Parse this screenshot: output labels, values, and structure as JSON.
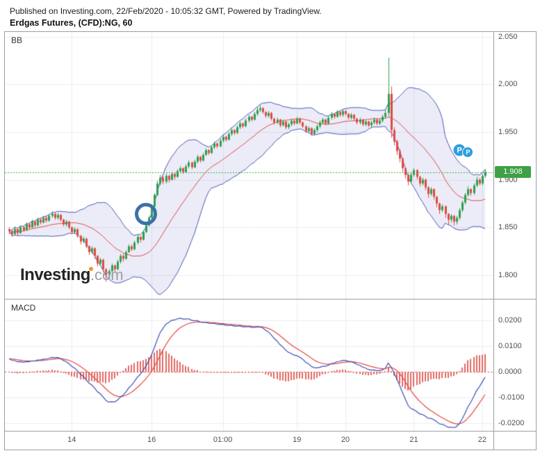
{
  "header": {
    "published_line": "Published on Investing.com, 22/Feb/2020 - 10:05:32 GMT, Powered by TradingView.",
    "instrument_line": "Erdgas Futures, (CFD):NG, 60"
  },
  "watermark": {
    "main": "Investing",
    "suffix": ".com"
  },
  "chart_data": {
    "type": "candlestick",
    "title": "Erdgas Futures (CFD):NG, 60 minute chart with Bollinger Bands and MACD",
    "interval_minutes": 60,
    "last_price": 1.908,
    "last_price_label": "1.908",
    "time_ticks": [
      {
        "index": 22,
        "label": "14"
      },
      {
        "index": 50,
        "label": "16"
      },
      {
        "index": 75,
        "label": "01:00"
      },
      {
        "index": 101,
        "label": "19"
      },
      {
        "index": 118,
        "label": "20"
      },
      {
        "index": 142,
        "label": "21"
      },
      {
        "index": 166,
        "label": "22"
      }
    ],
    "main_pane": {
      "indicator": "BB",
      "bb": {
        "period": 20,
        "stddev": 2
      },
      "ylim": [
        1.775,
        2.055
      ],
      "price_ticks": [
        {
          "value": 2.05,
          "label": "2.050"
        },
        {
          "value": 2.0,
          "label": "2.000"
        },
        {
          "value": 1.95,
          "label": "1.950"
        },
        {
          "value": 1.9,
          "label": "1.900"
        },
        {
          "value": 1.85,
          "label": "1.850"
        },
        {
          "value": 1.8,
          "label": "1.800"
        }
      ]
    },
    "macd_pane": {
      "indicator": "MACD",
      "params": {
        "fast": 12,
        "slow": 26,
        "signal": 9
      },
      "start_value": 0.005,
      "ylim": [
        -0.023,
        0.028
      ],
      "ticks": [
        {
          "value": 0.02,
          "label": "0.0200"
        },
        {
          "value": 0.01,
          "label": "0.0100"
        },
        {
          "value": 0.0,
          "label": "0.0000"
        },
        {
          "value": -0.01,
          "label": "-0.0100"
        },
        {
          "value": -0.02,
          "label": "-0.0200"
        }
      ]
    },
    "annotations": {
      "circle": {
        "index": 48,
        "price": 1.864
      },
      "p_markers": [
        {
          "index": 158,
          "price": 1.931,
          "label": "P"
        },
        {
          "index": 161,
          "price": 1.929,
          "label": "P"
        }
      ]
    },
    "colors": {
      "up": "#2f9e4f",
      "down": "#e04a41",
      "bb_line": "#4a55b5",
      "bb_mid": "#e04848",
      "bb_fill": "rgba(100,110,190,0.13)",
      "grid": "#ebedf0",
      "last_line": "#3da63d",
      "badge_bg": "#3fa045",
      "macd_line": "#3a4db5",
      "signal_line": "#e8433f",
      "hist": "#e06a63",
      "marker_bg": "#2f9fe0",
      "annotation": "#3a72a8"
    },
    "candles": [
      [
        1.848,
        1.85,
        1.843,
        1.846
      ],
      [
        1.846,
        1.847,
        1.84,
        1.843
      ],
      [
        1.843,
        1.851,
        1.842,
        1.848
      ],
      [
        1.848,
        1.849,
        1.841,
        1.844
      ],
      [
        1.844,
        1.852,
        1.843,
        1.85
      ],
      [
        1.85,
        1.852,
        1.845,
        1.847
      ],
      [
        1.847,
        1.855,
        1.846,
        1.853
      ],
      [
        1.853,
        1.855,
        1.848,
        1.85
      ],
      [
        1.85,
        1.858,
        1.849,
        1.856
      ],
      [
        1.856,
        1.857,
        1.85,
        1.852
      ],
      [
        1.852,
        1.86,
        1.851,
        1.858
      ],
      [
        1.858,
        1.86,
        1.853,
        1.855
      ],
      [
        1.855,
        1.862,
        1.854,
        1.86
      ],
      [
        1.86,
        1.862,
        1.855,
        1.857
      ],
      [
        1.857,
        1.864,
        1.856,
        1.862
      ],
      [
        1.862,
        1.867,
        1.86,
        1.864
      ],
      [
        1.864,
        1.866,
        1.858,
        1.86
      ],
      [
        1.86,
        1.865,
        1.858,
        1.863
      ],
      [
        1.863,
        1.864,
        1.856,
        1.858
      ],
      [
        1.858,
        1.859,
        1.851,
        1.853
      ],
      [
        1.853,
        1.858,
        1.851,
        1.856
      ],
      [
        1.856,
        1.857,
        1.848,
        1.85
      ],
      [
        1.85,
        1.851,
        1.843,
        1.845
      ],
      [
        1.845,
        1.85,
        1.843,
        1.848
      ],
      [
        1.848,
        1.849,
        1.839,
        1.841
      ],
      [
        1.841,
        1.842,
        1.832,
        1.835
      ],
      [
        1.835,
        1.84,
        1.833,
        1.838
      ],
      [
        1.838,
        1.839,
        1.828,
        1.83
      ],
      [
        1.83,
        1.831,
        1.821,
        1.824
      ],
      [
        1.824,
        1.83,
        1.822,
        1.828
      ],
      [
        1.828,
        1.829,
        1.817,
        1.82
      ],
      [
        1.82,
        1.821,
        1.809,
        1.812
      ],
      [
        1.812,
        1.818,
        1.81,
        1.816
      ],
      [
        1.816,
        1.817,
        1.803,
        1.806
      ],
      [
        1.806,
        1.807,
        1.793,
        1.8
      ],
      [
        1.8,
        1.806,
        1.796,
        1.804
      ],
      [
        1.804,
        1.812,
        1.802,
        1.81
      ],
      [
        1.81,
        1.811,
        1.803,
        1.806
      ],
      [
        1.806,
        1.816,
        1.805,
        1.814
      ],
      [
        1.814,
        1.822,
        1.812,
        1.82
      ],
      [
        1.82,
        1.822,
        1.814,
        1.817
      ],
      [
        1.817,
        1.826,
        1.816,
        1.824
      ],
      [
        1.824,
        1.832,
        1.823,
        1.83
      ],
      [
        1.83,
        1.832,
        1.825,
        1.827
      ],
      [
        1.827,
        1.836,
        1.826,
        1.834
      ],
      [
        1.834,
        1.842,
        1.832,
        1.84
      ],
      [
        1.84,
        1.841,
        1.834,
        1.837
      ],
      [
        1.837,
        1.847,
        1.836,
        1.845
      ],
      [
        1.845,
        1.854,
        1.844,
        1.852
      ],
      [
        1.852,
        1.862,
        1.851,
        1.86
      ],
      [
        1.86,
        1.874,
        1.858,
        1.872
      ],
      [
        1.872,
        1.886,
        1.87,
        1.884
      ],
      [
        1.884,
        1.899,
        1.883,
        1.896
      ],
      [
        1.896,
        1.905,
        1.894,
        1.902
      ],
      [
        1.902,
        1.904,
        1.895,
        1.898
      ],
      [
        1.898,
        1.906,
        1.896,
        1.904
      ],
      [
        1.904,
        1.905,
        1.897,
        1.9
      ],
      [
        1.9,
        1.908,
        1.899,
        1.906
      ],
      [
        1.906,
        1.907,
        1.9,
        1.903
      ],
      [
        1.903,
        1.911,
        1.902,
        1.909
      ],
      [
        1.909,
        1.914,
        1.907,
        1.912
      ],
      [
        1.912,
        1.913,
        1.906,
        1.908
      ],
      [
        1.908,
        1.916,
        1.907,
        1.914
      ],
      [
        1.914,
        1.92,
        1.912,
        1.918
      ],
      [
        1.918,
        1.919,
        1.911,
        1.913
      ],
      [
        1.913,
        1.921,
        1.912,
        1.919
      ],
      [
        1.919,
        1.926,
        1.917,
        1.924
      ],
      [
        1.924,
        1.925,
        1.918,
        1.92
      ],
      [
        1.92,
        1.928,
        1.919,
        1.926
      ],
      [
        1.926,
        1.933,
        1.925,
        1.931
      ],
      [
        1.931,
        1.932,
        1.926,
        1.928
      ],
      [
        1.928,
        1.936,
        1.927,
        1.934
      ],
      [
        1.934,
        1.94,
        1.932,
        1.938
      ],
      [
        1.938,
        1.939,
        1.933,
        1.935
      ],
      [
        1.935,
        1.943,
        1.934,
        1.941
      ],
      [
        1.941,
        1.947,
        1.939,
        1.945
      ],
      [
        1.945,
        1.946,
        1.94,
        1.942
      ],
      [
        1.942,
        1.95,
        1.941,
        1.948
      ],
      [
        1.948,
        1.954,
        1.946,
        1.952
      ],
      [
        1.952,
        1.953,
        1.947,
        1.949
      ],
      [
        1.949,
        1.957,
        1.948,
        1.955
      ],
      [
        1.955,
        1.961,
        1.953,
        1.959
      ],
      [
        1.959,
        1.96,
        1.954,
        1.956
      ],
      [
        1.956,
        1.964,
        1.955,
        1.962
      ],
      [
        1.962,
        1.968,
        1.96,
        1.966
      ],
      [
        1.966,
        1.967,
        1.961,
        1.963
      ],
      [
        1.963,
        1.971,
        1.962,
        1.969
      ],
      [
        1.969,
        1.976,
        1.967,
        1.973
      ],
      [
        1.973,
        1.978,
        1.971,
        1.975
      ],
      [
        1.975,
        1.976,
        1.969,
        1.971
      ],
      [
        1.971,
        1.972,
        1.965,
        1.967
      ],
      [
        1.967,
        1.972,
        1.965,
        1.97
      ],
      [
        1.97,
        1.971,
        1.962,
        1.964
      ],
      [
        1.964,
        1.965,
        1.958,
        1.96
      ],
      [
        1.96,
        1.965,
        1.958,
        1.963
      ],
      [
        1.963,
        1.964,
        1.955,
        1.957
      ],
      [
        1.957,
        1.963,
        1.956,
        1.961
      ],
      [
        1.961,
        1.962,
        1.953,
        1.955
      ],
      [
        1.955,
        1.96,
        1.953,
        1.958
      ],
      [
        1.958,
        1.964,
        1.956,
        1.962
      ],
      [
        1.962,
        1.963,
        1.957,
        1.959
      ],
      [
        1.959,
        1.966,
        1.958,
        1.964
      ],
      [
        1.964,
        1.965,
        1.958,
        1.96
      ],
      [
        1.96,
        1.961,
        1.954,
        1.956
      ],
      [
        1.956,
        1.957,
        1.949,
        1.951
      ],
      [
        1.951,
        1.956,
        1.949,
        1.954
      ],
      [
        1.954,
        1.955,
        1.946,
        1.948
      ],
      [
        1.948,
        1.954,
        1.947,
        1.952
      ],
      [
        1.952,
        1.958,
        1.95,
        1.956
      ],
      [
        1.956,
        1.962,
        1.954,
        1.96
      ],
      [
        1.96,
        1.965,
        1.958,
        1.963
      ],
      [
        1.963,
        1.964,
        1.957,
        1.959
      ],
      [
        1.959,
        1.967,
        1.958,
        1.965
      ],
      [
        1.965,
        1.971,
        1.963,
        1.969
      ],
      [
        1.969,
        1.97,
        1.964,
        1.966
      ],
      [
        1.966,
        1.973,
        1.965,
        1.971
      ],
      [
        1.971,
        1.972,
        1.966,
        1.968
      ],
      [
        1.968,
        1.974,
        1.966,
        1.972
      ],
      [
        1.972,
        1.973,
        1.967,
        1.969
      ],
      [
        1.969,
        1.97,
        1.963,
        1.965
      ],
      [
        1.965,
        1.97,
        1.963,
        1.968
      ],
      [
        1.968,
        1.969,
        1.962,
        1.964
      ],
      [
        1.964,
        1.965,
        1.958,
        1.96
      ],
      [
        1.96,
        1.965,
        1.958,
        1.963
      ],
      [
        1.963,
        1.964,
        1.956,
        1.958
      ],
      [
        1.958,
        1.963,
        1.956,
        1.961
      ],
      [
        1.961,
        1.962,
        1.955,
        1.957
      ],
      [
        1.957,
        1.962,
        1.955,
        1.96
      ],
      [
        1.96,
        1.965,
        1.958,
        1.963
      ],
      [
        1.963,
        1.964,
        1.957,
        1.959
      ],
      [
        1.959,
        1.964,
        1.957,
        1.962
      ],
      [
        1.962,
        1.968,
        1.96,
        1.966
      ],
      [
        1.966,
        1.974,
        1.964,
        1.97
      ],
      [
        1.97,
        2.028,
        1.966,
        1.99
      ],
      [
        1.99,
        1.998,
        1.944,
        1.952
      ],
      [
        1.952,
        1.955,
        1.936,
        1.94
      ],
      [
        1.94,
        1.942,
        1.926,
        1.93
      ],
      [
        1.93,
        1.932,
        1.918,
        1.922
      ],
      [
        1.922,
        1.923,
        1.908,
        1.912
      ],
      [
        1.912,
        1.913,
        1.901,
        1.905
      ],
      [
        1.905,
        1.906,
        1.894,
        1.898
      ],
      [
        1.898,
        1.907,
        1.896,
        1.905
      ],
      [
        1.905,
        1.912,
        1.903,
        1.91
      ],
      [
        1.91,
        1.911,
        1.9,
        1.903
      ],
      [
        1.903,
        1.904,
        1.893,
        1.896
      ],
      [
        1.896,
        1.902,
        1.894,
        1.9
      ],
      [
        1.9,
        1.901,
        1.889,
        1.892
      ],
      [
        1.892,
        1.893,
        1.881,
        1.885
      ],
      [
        1.885,
        1.892,
        1.883,
        1.89
      ],
      [
        1.89,
        1.891,
        1.879,
        1.882
      ],
      [
        1.882,
        1.883,
        1.871,
        1.875
      ],
      [
        1.875,
        1.876,
        1.864,
        1.868
      ],
      [
        1.868,
        1.874,
        1.866,
        1.872
      ],
      [
        1.872,
        1.873,
        1.86,
        1.864
      ],
      [
        1.864,
        1.865,
        1.853,
        1.858
      ],
      [
        1.858,
        1.864,
        1.855,
        1.862
      ],
      [
        1.862,
        1.863,
        1.852,
        1.856
      ],
      [
        1.856,
        1.862,
        1.853,
        1.86
      ],
      [
        1.86,
        1.87,
        1.858,
        1.868
      ],
      [
        1.868,
        1.878,
        1.866,
        1.876
      ],
      [
        1.876,
        1.886,
        1.874,
        1.884
      ],
      [
        1.884,
        1.893,
        1.882,
        1.89
      ],
      [
        1.89,
        1.891,
        1.883,
        1.886
      ],
      [
        1.886,
        1.896,
        1.884,
        1.894
      ],
      [
        1.894,
        1.903,
        1.892,
        1.9
      ],
      [
        1.9,
        1.902,
        1.894,
        1.896
      ],
      [
        1.896,
        1.906,
        1.894,
        1.904
      ],
      [
        1.904,
        1.911,
        1.902,
        1.908
      ]
    ]
  }
}
